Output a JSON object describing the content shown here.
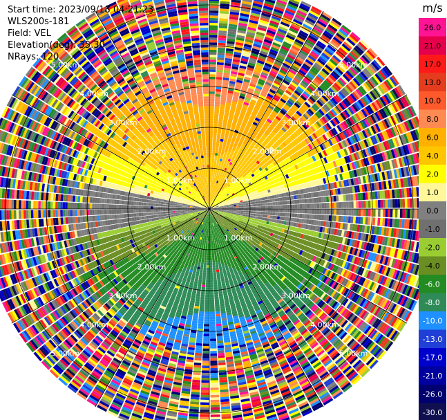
{
  "header": {
    "start_time": "Start time: 2023/09/18 04:21:23",
    "instrument": "WLS200s-181",
    "field": "Field: VEL",
    "elevation": "Elevation(deg): 35.30",
    "nrays": "NRays: 120"
  },
  "chart_data": {
    "type": "heatmap",
    "projection": "polar-ppi",
    "field": "VEL",
    "n_rays": 120,
    "range_rings_km": [
      1.0,
      2.0,
      3.0,
      4.0,
      5.0
    ],
    "ring_labels": [
      "1.00km",
      "2.00km",
      "3.00km",
      "4.00km",
      "5.00km"
    ],
    "spoke_angles_deg": [
      0,
      30,
      60,
      90,
      120,
      150,
      180,
      210,
      240,
      270,
      300,
      330
    ],
    "max_range_km": 5.6,
    "colorbar": {
      "unit": "m/s",
      "tick_labels": [
        "26.0",
        "21.0",
        "17.0",
        "13.0",
        "10.0",
        "8.0",
        "6.0",
        "4.0",
        "2.0",
        "1.0",
        "0.0",
        "-1.0",
        "-2.0",
        "-4.0",
        "-6.0",
        "-8.0",
        "-10.0",
        "-13.0",
        "-17.0",
        "-21.0",
        "-26.0",
        "-30.0"
      ],
      "colors": [
        "#ff1493",
        "#e6004c",
        "#ff1a1a",
        "#e63c1e",
        "#ff5a2b",
        "#ff8a52",
        "#ffb000",
        "#ffc600",
        "#ffff00",
        "#fff799",
        "#808080",
        "#707070",
        "#9acd32",
        "#6b8e23",
        "#228b22",
        "#2e8b57",
        "#1e90ff",
        "#1f3fd6",
        "#0000cd",
        "#0000a0",
        "#000070",
        "#101050"
      ]
    }
  }
}
